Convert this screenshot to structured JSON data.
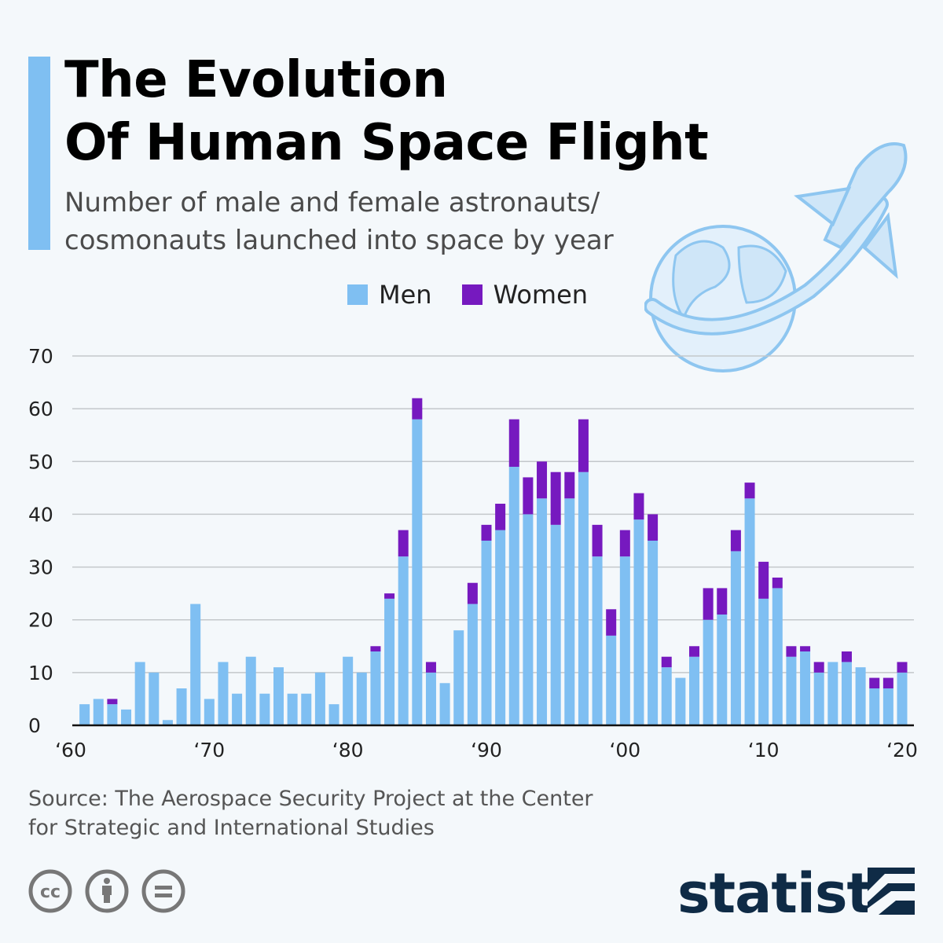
{
  "title_line1": "The Evolution",
  "title_line2": "Of Human Space Flight",
  "subtitle_line1": "Number of male and female astronauts/",
  "subtitle_line2": "cosmonauts launched into space by year",
  "source_line1": "Source: The Aerospace Security Project at the Center",
  "source_line2": "for Strategic and International Studies",
  "brand": "statista",
  "icons": [
    "creative-commons-icon",
    "attribution-icon",
    "no-derivatives-icon",
    "globe-rocket-illustration"
  ],
  "colors": {
    "men": "#7fbff2",
    "women": "#7619bf",
    "accent": "#7fbff2",
    "brand": "#0f2b46"
  },
  "chart_data": {
    "type": "bar",
    "stacked": true,
    "ylim": [
      0,
      70
    ],
    "yticks": [
      0,
      10,
      20,
      30,
      40,
      50,
      60,
      70
    ],
    "xtick_labels": [
      "‘60",
      "‘70",
      "‘80",
      "‘90",
      "‘00",
      "‘10",
      "‘20"
    ],
    "xtick_years": [
      1960,
      1970,
      1980,
      1990,
      2000,
      2010,
      2020
    ],
    "grid": true,
    "legend_position": "top",
    "categories": [
      1961,
      1962,
      1963,
      1964,
      1965,
      1966,
      1967,
      1968,
      1969,
      1970,
      1971,
      1972,
      1973,
      1974,
      1975,
      1976,
      1977,
      1978,
      1979,
      1980,
      1981,
      1982,
      1983,
      1984,
      1985,
      1986,
      1987,
      1988,
      1989,
      1990,
      1991,
      1992,
      1993,
      1994,
      1995,
      1996,
      1997,
      1998,
      1999,
      2000,
      2001,
      2002,
      2003,
      2004,
      2005,
      2006,
      2007,
      2008,
      2009,
      2010,
      2011,
      2012,
      2013,
      2014,
      2015,
      2016,
      2017,
      2018,
      2019,
      2020
    ],
    "series": [
      {
        "name": "Men",
        "values": [
          4,
          5,
          4,
          3,
          12,
          10,
          1,
          7,
          23,
          5,
          12,
          6,
          13,
          6,
          11,
          6,
          6,
          10,
          4,
          13,
          10,
          14,
          24,
          32,
          58,
          10,
          8,
          18,
          23,
          35,
          37,
          49,
          40,
          43,
          38,
          43,
          48,
          32,
          17,
          32,
          39,
          35,
          11,
          9,
          13,
          20,
          21,
          33,
          43,
          24,
          26,
          13,
          14,
          10,
          12,
          12,
          11,
          7,
          7,
          10
        ]
      },
      {
        "name": "Women",
        "values": [
          0,
          0,
          1,
          0,
          0,
          0,
          0,
          0,
          0,
          0,
          0,
          0,
          0,
          0,
          0,
          0,
          0,
          0,
          0,
          0,
          0,
          1,
          1,
          5,
          4,
          2,
          0,
          0,
          4,
          3,
          5,
          9,
          7,
          7,
          10,
          5,
          10,
          6,
          5,
          5,
          5,
          5,
          2,
          0,
          2,
          6,
          5,
          4,
          3,
          7,
          2,
          2,
          1,
          2,
          0,
          2,
          0,
          2,
          2,
          2
        ]
      }
    ]
  }
}
